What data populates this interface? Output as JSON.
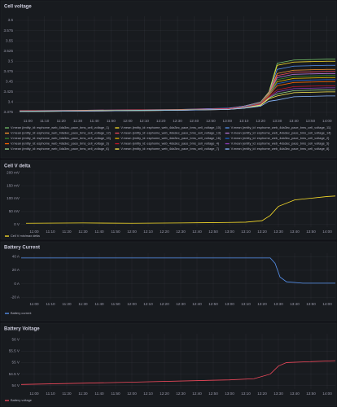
{
  "chart_data": [
    {
      "type": "line",
      "title": "Cell voltage",
      "x": [
        "10:55",
        "11:30",
        "12:00",
        "12:30",
        "13:00",
        "13:10",
        "13:20",
        "13:25",
        "13:30",
        "13:40",
        "14:00",
        "14:05"
      ],
      "xlim": [
        "10:52",
        "14:05"
      ],
      "xticks": [
        "11:00",
        "11:10",
        "11:20",
        "11:30",
        "11:40",
        "11:50",
        "12:00",
        "12:10",
        "12:20",
        "12:30",
        "12:40",
        "12:50",
        "13:00",
        "13:10",
        "13:20",
        "13:30",
        "13:40",
        "13:50",
        "14:00"
      ],
      "ylim": [
        3.365,
        3.61
      ],
      "yticks": [
        3.375,
        3.4,
        3.425,
        3.45,
        3.475,
        3.5,
        3.525,
        3.55,
        3.575,
        3.6
      ],
      "grid": true,
      "series": [
        {
          "name": "V.mean {entity_id: esphome_web_4da3ec_pace_bms_cell_voltage_1}",
          "color": "#73bf69",
          "values": [
            3.378,
            3.379,
            3.38,
            3.381,
            3.384,
            3.39,
            3.4,
            3.425,
            3.495,
            3.503,
            3.505,
            3.505
          ]
        },
        {
          "name": "V.mean {entity_id: esphome_web_4da3ec_pace_bms_cell_voltage_10}",
          "color": "#fade2a",
          "values": [
            3.378,
            3.379,
            3.38,
            3.381,
            3.384,
            3.39,
            3.4,
            3.424,
            3.49,
            3.498,
            3.5,
            3.5
          ]
        },
        {
          "name": "V.mean {entity_id: esphome_web_4da3ec_pace_bms_cell_voltage_11}",
          "color": "#5794f2",
          "values": [
            3.379,
            3.38,
            3.381,
            3.382,
            3.385,
            3.39,
            3.4,
            3.423,
            3.48,
            3.488,
            3.49,
            3.49
          ]
        },
        {
          "name": "V.mean {entity_id: esphome_web_4da3ec_pace_bms_cell_voltage_12}",
          "color": "#ff9830",
          "values": [
            3.378,
            3.379,
            3.38,
            3.381,
            3.384,
            3.389,
            3.399,
            3.422,
            3.47,
            3.478,
            3.48,
            3.48
          ]
        },
        {
          "name": "V.mean {entity_id: esphome_web_4da3ec_pace_bms_cell_voltage_13}",
          "color": "#f2495c",
          "values": [
            3.379,
            3.38,
            3.381,
            3.382,
            3.384,
            3.389,
            3.399,
            3.421,
            3.465,
            3.473,
            3.475,
            3.475
          ]
        },
        {
          "name": "V.mean {entity_id: esphome_web_4da3ec_pace_bms_cell_voltage_14}",
          "color": "#b877d9",
          "values": [
            3.378,
            3.379,
            3.38,
            3.381,
            3.384,
            3.389,
            3.398,
            3.42,
            3.46,
            3.468,
            3.47,
            3.47
          ]
        },
        {
          "name": "V.mean {entity_id: esphome_web_4da3ec_pace_bms_cell_voltage_15}",
          "color": "#37872d",
          "values": [
            3.378,
            3.379,
            3.38,
            3.381,
            3.383,
            3.388,
            3.398,
            3.419,
            3.455,
            3.463,
            3.465,
            3.465
          ]
        },
        {
          "name": "V.mean {entity_id: esphome_web_4da3ec_pace_bms_cell_voltage_16}",
          "color": "#e0b400",
          "values": [
            3.377,
            3.378,
            3.379,
            3.38,
            3.383,
            3.388,
            3.397,
            3.418,
            3.45,
            3.458,
            3.46,
            3.46
          ]
        },
        {
          "name": "V.mean {entity_id: esphome_web_4da3ec_pace_bms_cell_voltage_2}",
          "color": "#1f60c4",
          "values": [
            3.378,
            3.379,
            3.38,
            3.381,
            3.383,
            3.388,
            3.397,
            3.417,
            3.445,
            3.453,
            3.455,
            3.455
          ]
        },
        {
          "name": "V.mean {entity_id: esphome_web_4da3ec_pace_bms_cell_voltage_3}",
          "color": "#fa6400",
          "values": [
            3.377,
            3.378,
            3.379,
            3.38,
            3.383,
            3.387,
            3.396,
            3.416,
            3.44,
            3.448,
            3.45,
            3.45
          ]
        },
        {
          "name": "V.mean {entity_id: esphome_web_4da3ec_pace_bms_cell_voltage_4}",
          "color": "#c4162a",
          "values": [
            3.378,
            3.379,
            3.38,
            3.381,
            3.383,
            3.387,
            3.395,
            3.413,
            3.43,
            3.438,
            3.44,
            3.44
          ]
        },
        {
          "name": "V.mean {entity_id: esphome_web_4da3ec_pace_bms_cell_voltage_5}",
          "color": "#8f3bb8",
          "values": [
            3.377,
            3.378,
            3.379,
            3.38,
            3.382,
            3.386,
            3.394,
            3.411,
            3.425,
            3.433,
            3.435,
            3.435
          ]
        },
        {
          "name": "V.mean {entity_id: esphome_web_4da3ec_pace_bms_cell_voltage_6}",
          "color": "#96d98d",
          "values": [
            3.378,
            3.379,
            3.38,
            3.381,
            3.382,
            3.386,
            3.393,
            3.41,
            3.42,
            3.428,
            3.43,
            3.43
          ]
        },
        {
          "name": "V.mean {entity_id: esphome_web_4da3ec_pace_bms_cell_voltage_7}",
          "color": "#ffee52",
          "values": [
            3.377,
            3.378,
            3.379,
            3.38,
            3.382,
            3.385,
            3.392,
            3.408,
            3.415,
            3.423,
            3.425,
            3.425
          ]
        },
        {
          "name": "V.mean {entity_id: esphome_web_4da3ec_pace_bms_cell_voltage_8}",
          "color": "#8ab8ff",
          "values": [
            3.377,
            3.378,
            3.379,
            3.38,
            3.382,
            3.385,
            3.39,
            3.402,
            3.405,
            3.413,
            3.415,
            3.415
          ]
        }
      ]
    },
    {
      "type": "line",
      "title": "Cell V delta",
      "x": [
        "10:55",
        "11:30",
        "12:00",
        "12:30",
        "13:00",
        "13:10",
        "13:20",
        "13:25",
        "13:30",
        "13:40",
        "14:00",
        "14:05"
      ],
      "xlim": [
        "10:52",
        "14:05"
      ],
      "xticks": [
        "11:00",
        "11:10",
        "11:20",
        "11:30",
        "11:40",
        "11:50",
        "12:00",
        "12:10",
        "12:20",
        "12:30",
        "12:40",
        "12:50",
        "13:00",
        "13:10",
        "13:20",
        "13:30",
        "13:40",
        "13:50",
        "14:00"
      ],
      "ylim": [
        -10,
        210
      ],
      "yticks": [
        {
          "value": 0,
          "label": "0 V"
        },
        {
          "value": 50,
          "label": "50 mV"
        },
        {
          "value": 100,
          "label": "100 mV"
        },
        {
          "value": 150,
          "label": "150 mV"
        },
        {
          "value": 200,
          "label": "200 mV"
        }
      ],
      "grid": true,
      "series": [
        {
          "name": "Cell V min/max delta",
          "color": "#fade2a",
          "values": [
            5,
            6,
            5,
            6,
            8,
            9,
            15,
            35,
            70,
            95,
            108,
            110
          ]
        }
      ]
    },
    {
      "type": "line",
      "title": "Battery Current",
      "x": [
        "10:52",
        "13:00",
        "13:25",
        "13:28",
        "13:31",
        "13:35",
        "13:45",
        "14:05"
      ],
      "xlim": [
        "10:52",
        "14:05"
      ],
      "xticks": [
        "11:00",
        "11:10",
        "11:20",
        "11:30",
        "11:40",
        "11:50",
        "12:00",
        "12:10",
        "12:20",
        "12:30",
        "12:40",
        "12:50",
        "13:00",
        "13:10",
        "13:20",
        "13:30",
        "13:40",
        "13:50",
        "14:00"
      ],
      "ylim": [
        -23,
        45
      ],
      "yticks": [
        {
          "value": -20,
          "label": "-20 A"
        },
        {
          "value": 0,
          "label": "0 A"
        },
        {
          "value": 20,
          "label": "20 A"
        },
        {
          "value": 40,
          "label": "40 A"
        }
      ],
      "grid": true,
      "series": [
        {
          "name": "Battery current",
          "color": "#5794f2",
          "values": [
            38,
            38,
            38,
            30,
            10,
            3,
            1,
            1
          ]
        }
      ]
    },
    {
      "type": "line",
      "title": "Battery Voltage",
      "x": [
        "10:52",
        "12:00",
        "13:00",
        "13:15",
        "13:25",
        "13:30",
        "13:35",
        "14:05"
      ],
      "xlim": [
        "10:52",
        "14:05"
      ],
      "xticks": [
        "11:00",
        "11:10",
        "11:20",
        "11:30",
        "11:40",
        "11:50",
        "12:00",
        "12:10",
        "12:20",
        "12:30",
        "12:40",
        "12:50",
        "13:00",
        "13:10",
        "13:20",
        "13:30",
        "13:40",
        "13:50",
        "14:00"
      ],
      "ylim": [
        53.85,
        56.25
      ],
      "yticks": [
        {
          "value": 54,
          "label": "54 V"
        },
        {
          "value": 54.5,
          "label": "54.5 V"
        },
        {
          "value": 55,
          "label": "55 V"
        },
        {
          "value": 55.5,
          "label": "55.5 V"
        },
        {
          "value": 56,
          "label": "56 V"
        }
      ],
      "grid": true,
      "series": [
        {
          "name": "Battery voltage",
          "color": "#f2495c",
          "values": [
            54.05,
            54.15,
            54.25,
            54.3,
            54.5,
            54.85,
            55.0,
            55.08
          ]
        }
      ]
    }
  ]
}
